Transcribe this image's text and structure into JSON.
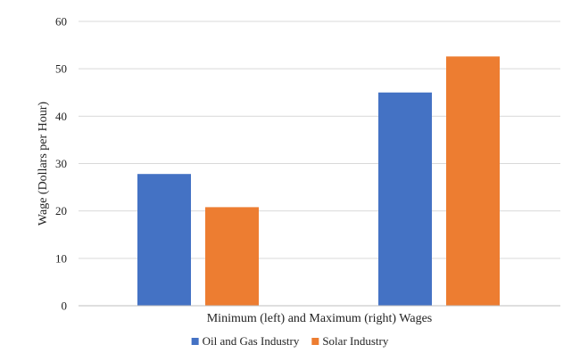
{
  "chart_data": {
    "type": "bar",
    "title": "",
    "xlabel": "Minimum (left) and Maximum (right) Wages",
    "ylabel": "Wage (Dollars per Hour)",
    "ylim": [
      0,
      60
    ],
    "yticks": [
      0,
      10,
      20,
      30,
      40,
      50,
      60
    ],
    "grid": true,
    "legend_position": "bottom",
    "categories": [
      "",
      ""
    ],
    "series": [
      {
        "name": "Oil and Gas Industry",
        "color": "#4472C4",
        "values": [
          27.8,
          45.0
        ]
      },
      {
        "name": "Solar Industry",
        "color": "#ED7D31",
        "values": [
          20.8,
          52.6
        ]
      }
    ]
  }
}
